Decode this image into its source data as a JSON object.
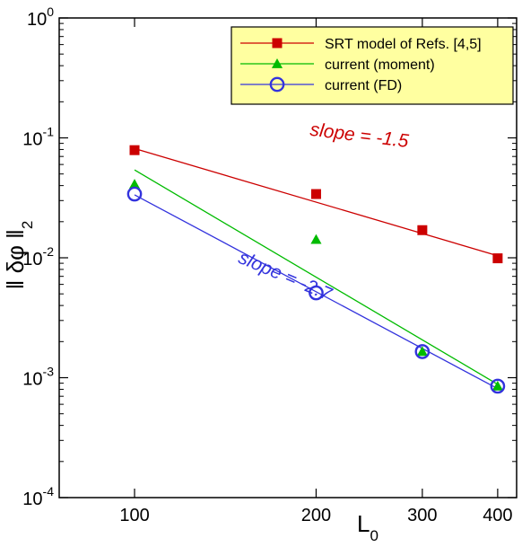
{
  "chart_data": {
    "type": "scatter",
    "title": "",
    "xlabel": "L",
    "xlabel_subscript": "0",
    "ylabel": "‖ δφ ‖",
    "ylabel_subscript": "2",
    "x_scale": "log",
    "y_scale": "log",
    "xlim": [
      75,
      430
    ],
    "ylim": [
      0.0001,
      1
    ],
    "x_ticks": [
      100,
      200,
      300,
      400
    ],
    "x_tick_labels": [
      "100",
      "200",
      "300",
      "400"
    ],
    "y_ticks": [
      {
        "value": 1,
        "base": "10",
        "exp": "0"
      },
      {
        "value": 0.1,
        "base": "10",
        "exp": "-1"
      },
      {
        "value": 0.01,
        "base": "10",
        "exp": "-2"
      },
      {
        "value": 0.001,
        "base": "10",
        "exp": "-3"
      },
      {
        "value": 0.0001,
        "base": "10",
        "exp": "-4"
      }
    ],
    "grid": false,
    "legend_position": "top-right",
    "legend_background": "#ffffa0",
    "series": [
      {
        "name": "SRT model of Refs. [4,5]",
        "color": "#cc0000",
        "marker": "square",
        "x": [
          100,
          200,
          300,
          400
        ],
        "y": [
          0.079,
          0.034,
          0.017,
          0.0099
        ],
        "fit": {
          "x": [
            100,
            400
          ],
          "y": [
            0.0815,
            0.0104
          ]
        }
      },
      {
        "name": "current (moment)",
        "color": "#00bb00",
        "marker": "triangle",
        "x": [
          100,
          200,
          300,
          400
        ],
        "y": [
          0.041,
          0.0142,
          0.00165,
          0.00085
        ],
        "fit": {
          "x": [
            100,
            400
          ],
          "y": [
            0.054,
            0.00088
          ]
        }
      },
      {
        "name": "current (FD)",
        "color": "#3333dd",
        "marker": "circle",
        "x": [
          100,
          200,
          300,
          400
        ],
        "y": [
          0.034,
          0.0051,
          0.00165,
          0.00085
        ],
        "fit": {
          "x": [
            100,
            400
          ],
          "y": [
            0.0335,
            0.00081
          ]
        }
      }
    ],
    "annotations": [
      {
        "text": "slope = -1.5",
        "color": "#cc0000",
        "x": 195,
        "y": 0.105,
        "angle": 7
      },
      {
        "text": "slope = -2.7",
        "color": "#3333dd",
        "x": 148,
        "y": 0.0092,
        "angle": 23
      }
    ]
  }
}
